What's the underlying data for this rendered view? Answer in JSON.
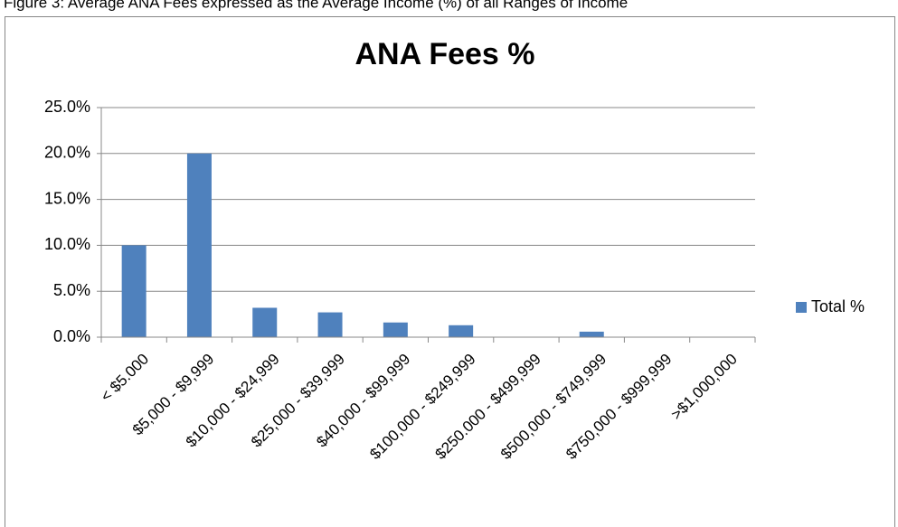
{
  "caption": "Figure 3: Average ANA Fees expressed as the Average Income (%) of all Ranges of Income",
  "chart_data": {
    "type": "bar",
    "title": "ANA Fees %",
    "categories": [
      "< $5.000",
      "$5,000 - $9,999",
      "$10,000 - $24,999",
      "$25,000 - $39,999",
      "$40,000 - $99,999",
      "$100,000 - $249,999",
      "$250.000 - $499,999",
      "$500,000 - $749,999",
      "$750,000 - $999,999",
      ">$1,000,000"
    ],
    "series": [
      {
        "name": "Total %",
        "color": "#4f81bd",
        "values": [
          10,
          20,
          3.2,
          2.7,
          1.6,
          1.3,
          0,
          0.6,
          0,
          0
        ]
      }
    ],
    "ylim": [
      0,
      25
    ],
    "yticks": [
      {
        "value": 0,
        "label": "0.0%"
      },
      {
        "value": 5,
        "label": "5.0%"
      },
      {
        "value": 10,
        "label": "10.0%"
      },
      {
        "value": 15,
        "label": "15.0%"
      },
      {
        "value": 20,
        "label": "20.0%"
      },
      {
        "value": 25,
        "label": "25.0%"
      }
    ],
    "grid": true,
    "legend": "right"
  }
}
